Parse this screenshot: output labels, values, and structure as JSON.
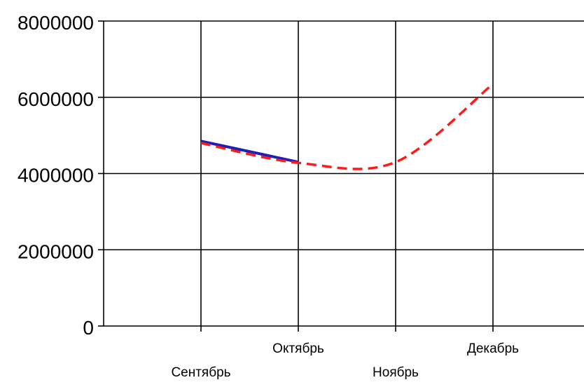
{
  "chart_data": {
    "type": "line",
    "categories": [
      "Сентябрь",
      "Октябрь",
      "Ноябрь",
      "Декабрь"
    ],
    "ylim": [
      0,
      8000000
    ],
    "yticks": [
      0,
      2000000,
      4000000,
      6000000,
      8000000
    ],
    "ytick_labels": [
      "0",
      "2000000",
      "4000000",
      "6000000",
      "8000000"
    ],
    "grid": true,
    "series": [
      {
        "style": "solid",
        "color": "#1f1fb4",
        "values": [
          4850000,
          4300000,
          null,
          null
        ]
      },
      {
        "style": "dashed-smooth",
        "color": "#ff1a1a",
        "values": [
          4800000,
          4280000,
          4300000,
          6350000
        ]
      }
    ]
  }
}
